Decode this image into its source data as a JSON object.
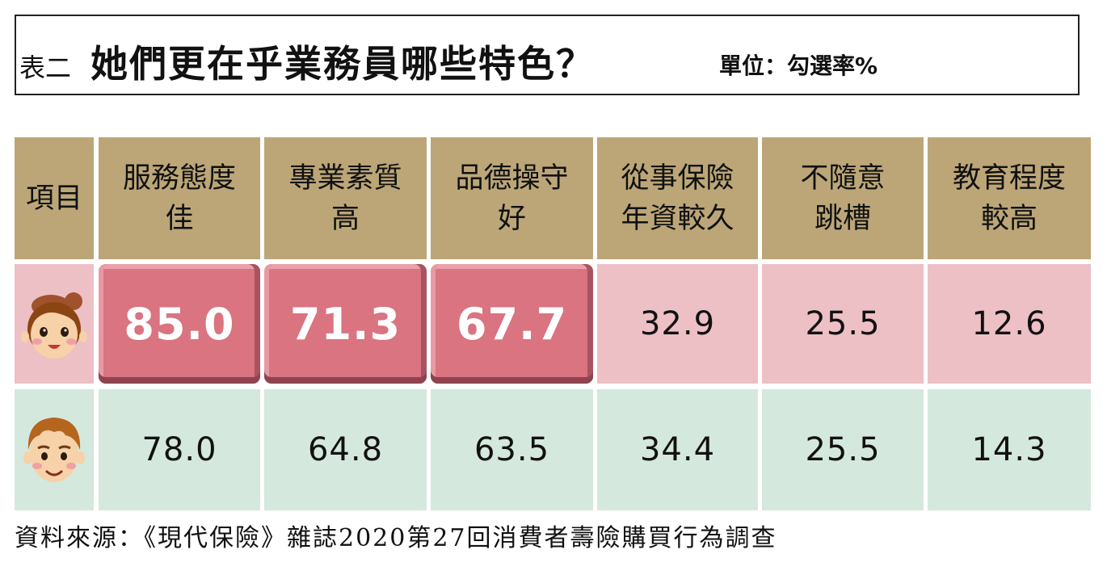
{
  "title": {
    "prefix": "表二",
    "main": "她們更在乎業務員哪些特色？",
    "unit": "單位：勾選率%"
  },
  "header": {
    "item_label": "項目",
    "columns": [
      [
        "服務態度",
        "佳"
      ],
      [
        "專業素質",
        "高"
      ],
      [
        "品德操守",
        "好"
      ],
      [
        "從事保險",
        "年資較久"
      ],
      [
        "不隨意",
        "跳槽"
      ],
      [
        "教育程度",
        "較高"
      ]
    ]
  },
  "rows": {
    "female": [
      "85.0",
      "71.3",
      "67.7",
      "32.9",
      "25.5",
      "12.6"
    ],
    "male": [
      "78.0",
      "64.8",
      "63.5",
      "34.4",
      "25.5",
      "14.3"
    ]
  },
  "icons": {
    "female_row": "woman-face-icon",
    "male_row": "man-face-icon"
  },
  "colors": {
    "header": "#bca678",
    "female_row": "#edc0c6",
    "male_row": "#d5e8dd",
    "highlight": "#d97480"
  },
  "source": "資料來源：《現代保險》雜誌2020第27回消費者壽險購買行為調查",
  "chart_data": {
    "type": "table",
    "title": "她們更在乎業務員哪些特色？",
    "unit": "單位：勾選率%",
    "categories": [
      "服務態度佳",
      "專業素質高",
      "品德操守好",
      "從事保險年資較久",
      "不隨意跳槽",
      "教育程度較高"
    ],
    "series": [
      {
        "values": [
          85.0,
          71.3,
          67.7,
          32.9,
          25.5,
          12.6
        ]
      },
      {
        "values": [
          78.0,
          64.8,
          63.5,
          34.4,
          25.5,
          14.3
        ]
      }
    ],
    "highlighted": {
      "row": 0,
      "columns": [
        0,
        1,
        2
      ]
    }
  }
}
